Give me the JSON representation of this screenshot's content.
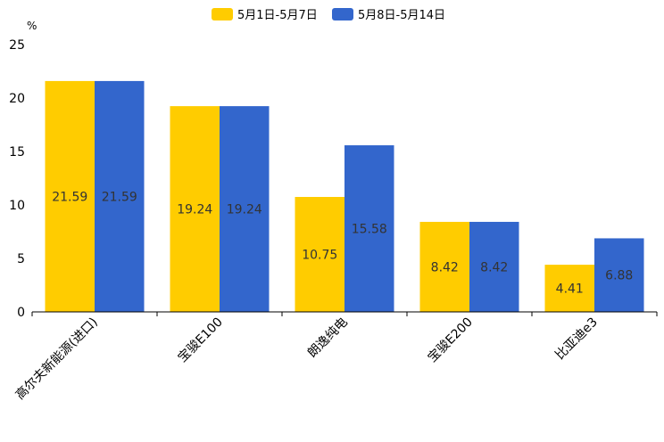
{
  "chart_data": {
    "type": "bar",
    "title": "",
    "ylabel": "%",
    "xlabel": "",
    "ylim": [
      0,
      25
    ],
    "yticks": [
      0,
      5,
      10,
      15,
      20,
      25
    ],
    "categories": [
      "高尔夫新能源(进口)",
      "宝骏E100",
      "朗逸纯电",
      "宝骏E200",
      "比亚迪e3"
    ],
    "series": [
      {
        "name": "5月1日-5月7日",
        "color": "#FFCC00",
        "values": [
          21.59,
          19.24,
          10.75,
          8.42,
          4.41
        ]
      },
      {
        "name": "5月8日-5月14日",
        "color": "#3366CC",
        "values": [
          21.59,
          19.24,
          15.58,
          8.42,
          6.88
        ]
      }
    ],
    "legend_position": "top-center",
    "grid": false
  }
}
